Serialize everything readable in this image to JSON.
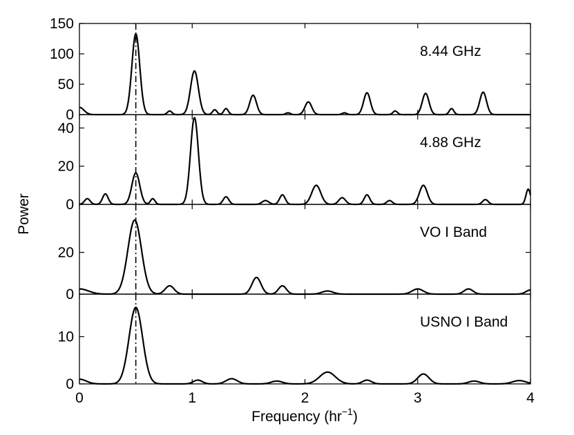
{
  "chart_data": {
    "type": "line",
    "xlabel": "Frequency (hr",
    "xlabel_sup": "−1",
    "xlabel_close": ")",
    "ylabel": "Power",
    "xlim": [
      0,
      4
    ],
    "x_ticks": [
      "0",
      "1",
      "2",
      "3",
      "4"
    ],
    "grid": false,
    "marker_frequency": 0.5,
    "panels": [
      {
        "label": "8.44 GHz",
        "ylim": [
          0,
          150
        ],
        "y_ticks": [
          0,
          50,
          100,
          150
        ],
        "peaks": [
          [
            0.5,
            133,
            0.035
          ],
          [
            1.02,
            72,
            0.035
          ],
          [
            1.54,
            32,
            0.03
          ],
          [
            2.03,
            21,
            0.03
          ],
          [
            2.55,
            36,
            0.03
          ],
          [
            3.07,
            35,
            0.03
          ],
          [
            3.58,
            37,
            0.03
          ],
          [
            0.0,
            12,
            0.04
          ],
          [
            0.8,
            6,
            0.02
          ],
          [
            1.2,
            8,
            0.02
          ],
          [
            1.3,
            10,
            0.02
          ],
          [
            3.3,
            10,
            0.02
          ],
          [
            2.35,
            3,
            0.02
          ],
          [
            1.85,
            3,
            0.02
          ],
          [
            2.8,
            6,
            0.02
          ]
        ]
      },
      {
        "label": "4.88 GHz",
        "ylim": [
          0,
          47
        ],
        "y_ticks": [
          0,
          20,
          40
        ],
        "peaks": [
          [
            0.5,
            16.5,
            0.035
          ],
          [
            1.02,
            45.5,
            0.035
          ],
          [
            0.07,
            3,
            0.025
          ],
          [
            0.23,
            5.5,
            0.025
          ],
          [
            0.65,
            3,
            0.02
          ],
          [
            1.3,
            4,
            0.025
          ],
          [
            1.8,
            5,
            0.025
          ],
          [
            2.1,
            10,
            0.04
          ],
          [
            2.33,
            3.5,
            0.03
          ],
          [
            2.55,
            5,
            0.025
          ],
          [
            3.05,
            10,
            0.035
          ],
          [
            3.6,
            2.5,
            0.025
          ],
          [
            3.98,
            8,
            0.02
          ],
          [
            1.65,
            2,
            0.03
          ],
          [
            2.75,
            2,
            0.025
          ]
        ]
      },
      {
        "label": "VO I Band",
        "ylim": [
          0,
          43
        ],
        "y_ticks": [
          0,
          20
        ],
        "peaks": [
          [
            0.49,
            35.5,
            0.06
          ],
          [
            0.8,
            4,
            0.04
          ],
          [
            1.57,
            8,
            0.04
          ],
          [
            1.8,
            4,
            0.035
          ],
          [
            2.2,
            1.5,
            0.05
          ],
          [
            3.0,
            2.5,
            0.05
          ],
          [
            3.45,
            2.5,
            0.04
          ],
          [
            0.0,
            2.5,
            0.08
          ],
          [
            4.0,
            2.0,
            0.04
          ]
        ]
      },
      {
        "label": "USNO I Band",
        "ylim": [
          0,
          19
        ],
        "y_ticks": [
          0,
          10
        ],
        "peaks": [
          [
            0.5,
            16.2,
            0.06
          ],
          [
            0.0,
            1.0,
            0.06
          ],
          [
            1.05,
            0.8,
            0.04
          ],
          [
            1.35,
            1.1,
            0.05
          ],
          [
            1.75,
            0.6,
            0.05
          ],
          [
            2.2,
            2.5,
            0.07
          ],
          [
            2.55,
            0.8,
            0.04
          ],
          [
            3.05,
            2.1,
            0.05
          ],
          [
            3.5,
            0.6,
            0.05
          ],
          [
            3.9,
            0.7,
            0.06
          ]
        ]
      }
    ]
  }
}
